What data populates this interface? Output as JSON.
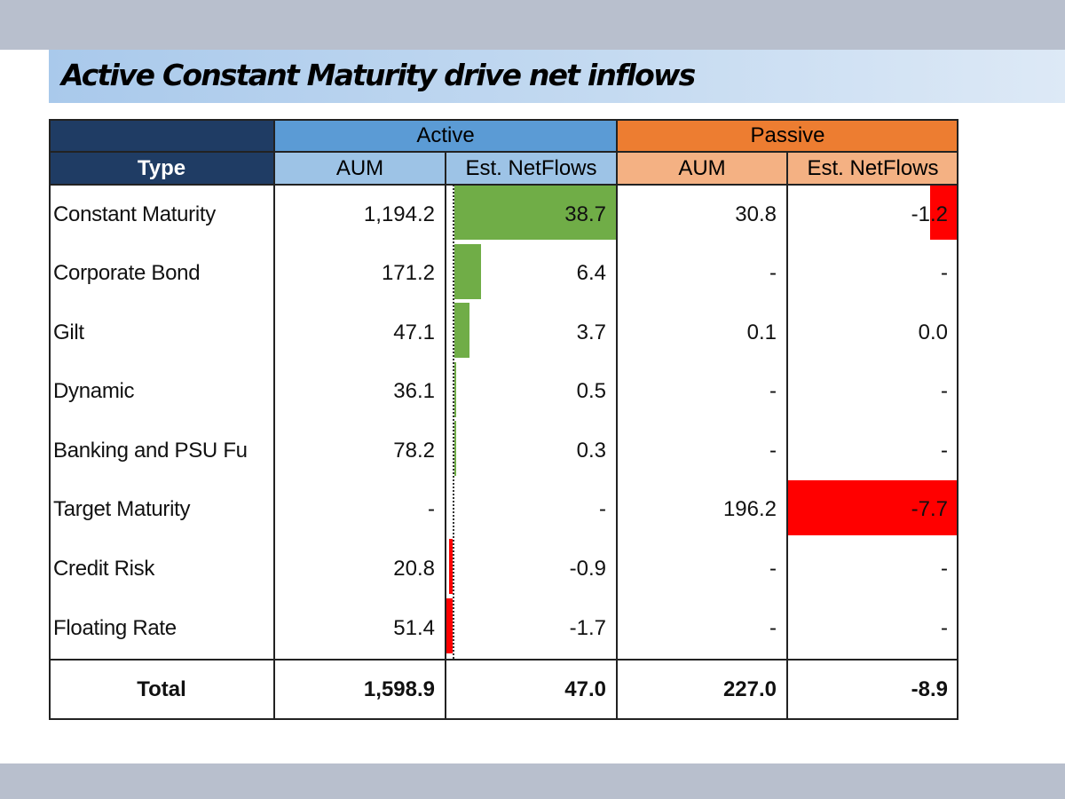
{
  "title": "Active Constant Maturity drive net inflows",
  "table": {
    "group_headers": {
      "active": "Active",
      "passive": "Passive"
    },
    "col_headers": {
      "type": "Type",
      "active_aum": "AUM",
      "active_flows": "Est. NetFlows",
      "passive_aum": "AUM",
      "passive_flows": "Est. NetFlows"
    },
    "rows": [
      {
        "type": "Constant Maturity",
        "active_aum": "1,194.2",
        "active_flows": "38.7",
        "passive_aum": "30.8",
        "passive_flows": "-1.2"
      },
      {
        "type": "Corporate Bond",
        "active_aum": "171.2",
        "active_flows": "6.4",
        "passive_aum": "-",
        "passive_flows": "-"
      },
      {
        "type": "Gilt",
        "active_aum": "47.1",
        "active_flows": "3.7",
        "passive_aum": "0.1",
        "passive_flows": "0.0"
      },
      {
        "type": "Dynamic",
        "active_aum": "36.1",
        "active_flows": "0.5",
        "passive_aum": "-",
        "passive_flows": "-"
      },
      {
        "type": "Banking and PSU Fu",
        "active_aum": "78.2",
        "active_flows": "0.3",
        "passive_aum": "-",
        "passive_flows": "-"
      },
      {
        "type": "Target Maturity",
        "active_aum": "-",
        "active_flows": "-",
        "passive_aum": "196.2",
        "passive_flows": "-7.7"
      },
      {
        "type": "Credit Risk",
        "active_aum": "20.8",
        "active_flows": "-0.9",
        "passive_aum": "-",
        "passive_flows": "-"
      },
      {
        "type": "Floating Rate",
        "active_aum": "51.4",
        "active_flows": "-1.7",
        "passive_aum": "-",
        "passive_flows": "-"
      }
    ],
    "total": {
      "type": "Total",
      "active_aum": "1,598.9",
      "active_flows": "47.0",
      "passive_aum": "227.0",
      "passive_flows": "-8.9"
    },
    "data_bars": {
      "active_flows": [
        38.7,
        6.4,
        3.7,
        0.5,
        0.3,
        0,
        -0.9,
        -1.7
      ],
      "passive_flows": [
        -1.2,
        0,
        0.0,
        0,
        0,
        -7.7,
        0,
        0
      ],
      "positive_color": "#70ad47",
      "negative_color": "#ff0000"
    }
  },
  "colors": {
    "header_dark": "#1f3c64",
    "active": "#5b9bd5",
    "active_light": "#9dc3e6",
    "passive": "#ed7d31",
    "passive_light": "#f4b183",
    "frame": "#b8bfcd"
  }
}
